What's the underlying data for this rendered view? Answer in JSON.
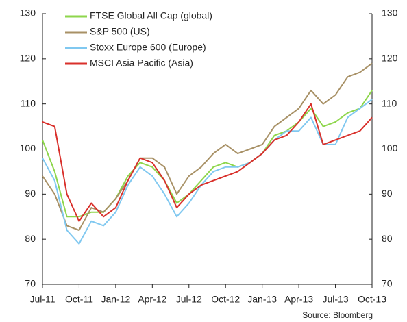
{
  "chart_data": {
    "type": "line",
    "source": "Source: Bloomberg",
    "x": [
      "2011-07",
      "2011-08",
      "2011-09",
      "2011-10",
      "2011-11",
      "2011-12",
      "2012-01",
      "2012-02",
      "2012-03",
      "2012-04",
      "2012-05",
      "2012-06",
      "2012-07",
      "2012-08",
      "2012-09",
      "2012-10",
      "2012-11",
      "2012-12",
      "2013-01",
      "2013-02",
      "2013-03",
      "2013-04",
      "2013-05",
      "2013-06",
      "2013-07",
      "2013-08",
      "2013-09",
      "2013-10"
    ],
    "xlim": [
      "2011-07",
      "2013-10"
    ],
    "xticks": [
      {
        "value": "2011-07",
        "label": "Jul-11"
      },
      {
        "value": "2011-10",
        "label": "Oct-11"
      },
      {
        "value": "2012-01",
        "label": "Jan-12"
      },
      {
        "value": "2012-04",
        "label": "Apr-12"
      },
      {
        "value": "2012-07",
        "label": "Jul-12"
      },
      {
        "value": "2012-10",
        "label": "Oct-12"
      },
      {
        "value": "2013-01",
        "label": "Jan-13"
      },
      {
        "value": "2013-04",
        "label": "Apr-13"
      },
      {
        "value": "2013-07",
        "label": "Jul-13"
      },
      {
        "value": "2013-10",
        "label": "Oct-13"
      }
    ],
    "ylim": [
      70,
      130
    ],
    "yticks": [
      70,
      80,
      90,
      100,
      110,
      120,
      130
    ],
    "y2lim": [
      70,
      130
    ],
    "y2ticks": [
      70,
      80,
      90,
      100,
      110,
      120,
      130
    ],
    "legend": "upper-left",
    "series": [
      {
        "name": "FTSE Global All Cap (global)",
        "color": "#8ed64c",
        "values": [
          102,
          95,
          85,
          85,
          86,
          86,
          89,
          94,
          97,
          96,
          93,
          88,
          90,
          93,
          96,
          97,
          96,
          97,
          99,
          103,
          104,
          106,
          109,
          105,
          106,
          108,
          109,
          113
        ]
      },
      {
        "name": "S&P 500 (US)",
        "color": "#a89166",
        "values": [
          94,
          90,
          83,
          82,
          87,
          86,
          89,
          93,
          98,
          98,
          96,
          90,
          94,
          96,
          99,
          101,
          99,
          100,
          101,
          105,
          107,
          109,
          113,
          110,
          112,
          116,
          117,
          119
        ]
      },
      {
        "name": "Stoxx Europe 600 (Europe)",
        "color": "#80c8f0",
        "values": [
          98,
          93,
          82,
          79,
          84,
          83,
          86,
          92,
          96,
          94,
          90,
          85,
          88,
          92,
          95,
          96,
          96,
          97,
          99,
          102,
          104,
          104,
          107,
          101,
          101,
          107,
          109,
          111
        ]
      },
      {
        "name": "MSCI Asia Pacific (Asia)",
        "color": "#d9302b",
        "values": [
          106,
          105,
          90,
          84,
          88,
          85,
          87,
          93,
          98,
          97,
          93,
          87,
          90,
          92,
          93,
          94,
          95,
          97,
          99,
          102,
          103,
          106,
          110,
          101,
          102,
          103,
          104,
          107
        ]
      }
    ]
  }
}
